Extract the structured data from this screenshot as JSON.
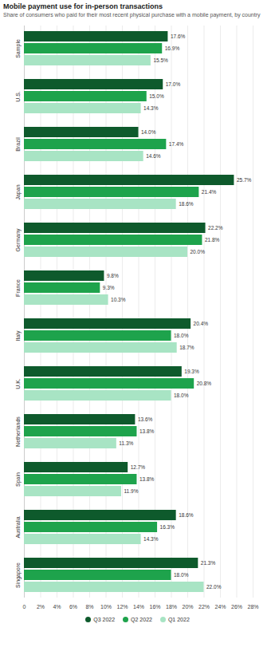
{
  "chart_data": {
    "type": "bar",
    "title": "Mobile payment use for in-person transactions",
    "subtitle": "Share of consumers who paid for their most recent physical purchase with a mobile payment, by country",
    "orientation": "horizontal",
    "grid": true,
    "data_labels": true,
    "legend": "bottom",
    "categories": [
      "Sample",
      "U.S.",
      "Brazil",
      "Japan",
      "Germany",
      "France",
      "Italy",
      "U.K.",
      "Netherlands",
      "Spain",
      "Australia",
      "Singapore"
    ],
    "series": [
      {
        "name": "Q3 2022",
        "color": "#0e5a2c",
        "values": [
          17.6,
          17.0,
          14.0,
          25.7,
          22.2,
          9.8,
          20.4,
          19.3,
          13.6,
          12.7,
          18.6,
          21.3
        ],
        "value_labels": [
          "17.6%",
          "17.0%",
          "14.0%",
          "25.7%",
          "22.2%",
          "9.8%",
          "20.4%",
          "19.3%",
          "13.6%",
          "12.7%",
          "18.6%",
          "21.3%"
        ]
      },
      {
        "name": "Q2 2022",
        "color": "#1ea34c",
        "values": [
          16.9,
          15.0,
          17.4,
          21.4,
          21.8,
          9.3,
          18.0,
          20.8,
          13.8,
          13.8,
          16.3,
          18.0
        ],
        "value_labels": [
          "16.9%",
          "15.0%",
          "17.4%",
          "21.4%",
          "21.8%",
          "9.3%",
          "18.0%",
          "20.8%",
          "13.8%",
          "13.8%",
          "16.3%",
          "18.0%"
        ]
      },
      {
        "name": "Q1 2022",
        "color": "#a8e4c4",
        "values": [
          15.5,
          14.3,
          14.6,
          18.6,
          20.0,
          10.3,
          18.7,
          18.0,
          11.3,
          11.9,
          14.3,
          22.0
        ],
        "value_labels": [
          "15.5%",
          "14.3%",
          "14.6%",
          "18.6%",
          "20.0%",
          "10.3%",
          "18.7%",
          "18.0%",
          "11.3%",
          "11.9%",
          "14.3%",
          "22.0%"
        ]
      }
    ],
    "xlim": [
      0,
      28
    ],
    "xticks": [
      0,
      {
        "value": 2,
        "label": "2%"
      },
      {
        "value": 4,
        "label": "4%"
      },
      {
        "value": 6,
        "label": "6%"
      },
      {
        "value": 8,
        "label": "8%"
      },
      {
        "value": 10,
        "label": "10%"
      },
      {
        "value": 12,
        "label": "12%"
      },
      {
        "value": 14,
        "label": "14%"
      },
      {
        "value": 16,
        "label": "16%"
      },
      {
        "value": 18,
        "label": "18%"
      },
      {
        "value": 20,
        "label": "20%"
      },
      {
        "value": 22,
        "label": "22%"
      },
      {
        "value": 24,
        "label": "24%"
      },
      {
        "value": 26,
        "label": "26%"
      },
      {
        "value": 28,
        "label": "28%"
      }
    ]
  }
}
